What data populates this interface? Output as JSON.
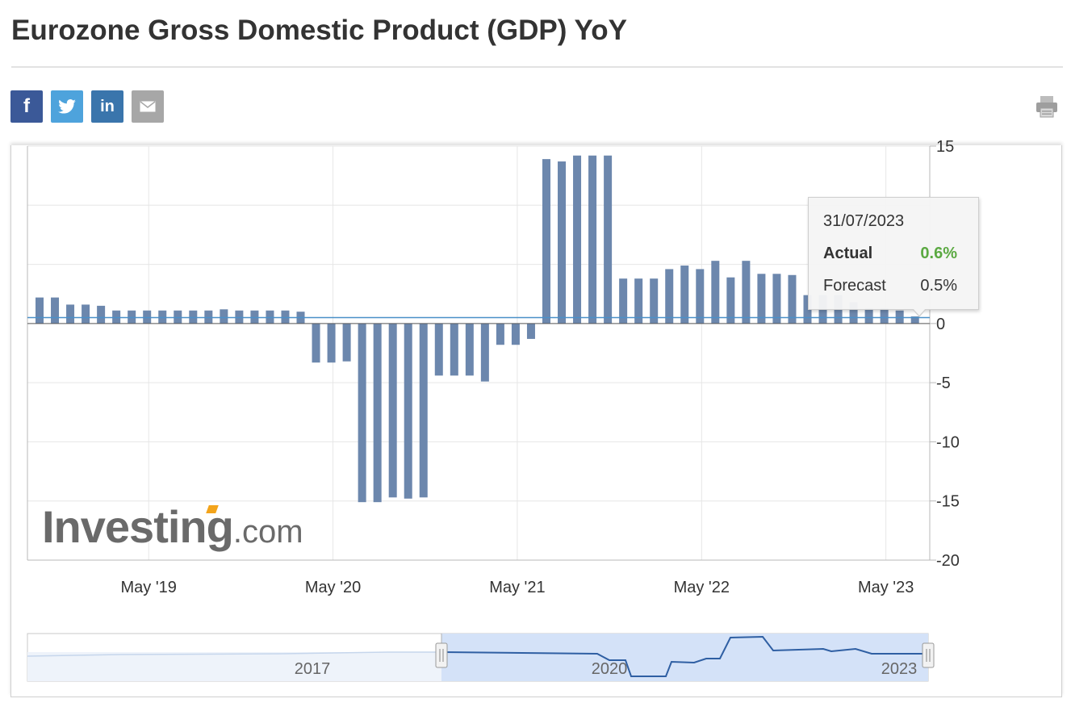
{
  "page": {
    "title": "Eurozone Gross Domestic Product (GDP) YoY"
  },
  "share": {
    "facebook": {
      "label": "f",
      "icon": "facebook-icon",
      "color": "#3b5998"
    },
    "twitter": {
      "icon": "twitter-icon",
      "color": "#4ea3dc"
    },
    "linkedin": {
      "label": "in",
      "icon": "linkedin-icon",
      "color": "#3a75ac"
    },
    "email": {
      "icon": "email-icon",
      "color": "#a7a7a7"
    },
    "print": {
      "icon": "printer-icon"
    }
  },
  "tooltip": {
    "date": "31/07/2023",
    "actual_label": "Actual",
    "actual_value": "0.6%",
    "forecast_label": "Forecast",
    "forecast_value": "0.5%"
  },
  "watermark": {
    "brand": "Investing",
    "tld": ".com",
    "accent_color": "#f3a41b"
  },
  "chart_data": {
    "type": "bar",
    "bar_color": "#6c87ad",
    "forecast_line_color": "#4a90c8",
    "y_axis": {
      "min": -20,
      "max": 15,
      "ticks": [
        15,
        0,
        -5,
        -10,
        -15,
        -20
      ],
      "position": "right"
    },
    "x_tick_labels": [
      "May '19",
      "May '20",
      "May '21",
      "May '22",
      "May '23"
    ],
    "x_tick_months": [
      "2019-05",
      "2020-05",
      "2021-05",
      "2022-05",
      "2023-05"
    ],
    "grid": true,
    "series": [
      {
        "dates": [
          "2018-10",
          "2018-11",
          "2018-12",
          "2019-01",
          "2019-02",
          "2019-03",
          "2019-04",
          "2019-05",
          "2019-06",
          "2019-07",
          "2019-08",
          "2019-09",
          "2019-10",
          "2019-11",
          "2019-12",
          "2020-01",
          "2020-02",
          "2020-03",
          "2020-04",
          "2020-05",
          "2020-06",
          "2020-07",
          "2020-08",
          "2020-09",
          "2020-10",
          "2020-11",
          "2020-12",
          "2021-01",
          "2021-02",
          "2021-03",
          "2021-04",
          "2021-05",
          "2021-06",
          "2021-07",
          "2021-08",
          "2021-09",
          "2021-10",
          "2021-11",
          "2021-12",
          "2022-01",
          "2022-02",
          "2022-03",
          "2022-04",
          "2022-05",
          "2022-06",
          "2022-07",
          "2022-08",
          "2022-09",
          "2022-10",
          "2022-11",
          "2022-12",
          "2023-01",
          "2023-02",
          "2023-03",
          "2023-04",
          "2023-05",
          "2023-06",
          "2023-07"
        ],
        "values": [
          2.2,
          2.2,
          1.6,
          1.6,
          1.5,
          1.1,
          1.1,
          1.1,
          1.1,
          1.1,
          1.1,
          1.1,
          1.2,
          1.1,
          1.1,
          1.1,
          1.1,
          1.0,
          -3.3,
          -3.3,
          -3.2,
          -15.1,
          -15.1,
          -14.7,
          -14.8,
          -14.7,
          -4.4,
          -4.4,
          -4.4,
          -4.9,
          -1.8,
          -1.8,
          -1.3,
          13.9,
          13.7,
          14.2,
          14.2,
          14.2,
          3.8,
          3.8,
          3.8,
          4.6,
          4.9,
          4.6,
          5.3,
          3.9,
          5.3,
          4.2,
          4.2,
          4.1,
          2.4,
          2.4,
          2.4,
          1.8,
          1.3,
          1.3,
          1.1,
          0.6
        ]
      }
    ],
    "forecast_level": 0.5,
    "navigator": {
      "labels": [
        "2017",
        "2020",
        "2023"
      ],
      "line_color": "#2f5fa3",
      "fill_color": "#d4e2f8"
    }
  }
}
